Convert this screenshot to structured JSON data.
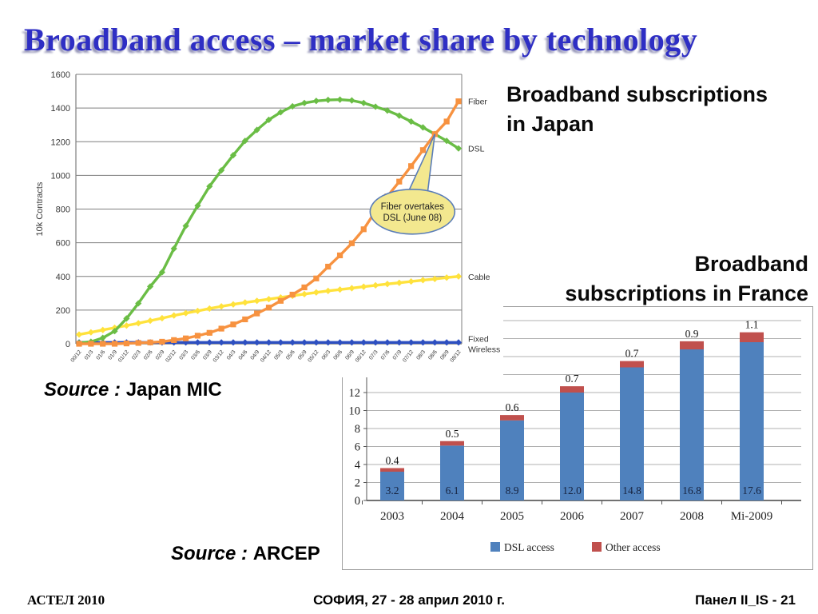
{
  "slide": {
    "title": "Broadband access – market share by technology",
    "japan_heading_line1": "Broadband subscriptions",
    "japan_heading_line2": "in Japan",
    "france_heading_line1": "Broadband",
    "france_heading_line2": "subscriptions in France",
    "source_japan_label": "Source :",
    "source_japan_value": "Japan MIC",
    "source_france_label": "Source :",
    "source_france_value": "ARCEP",
    "footer_left": "АСТЕЛ 2010",
    "footer_center": "СОФИЯ, 27 - 28 април 2010 г.",
    "footer_right": "Панел II_IS -  21"
  },
  "colors": {
    "title_blue": "#2e2ec4",
    "grid_gray": "#7f7f7f",
    "france_grid": "#b0b0b0",
    "callout_fill": "#f3e88f",
    "callout_stroke": "#5a7db8"
  },
  "chart_data": [
    {
      "type": "line",
      "title": "Broadband subscriptions in Japan",
      "xlabel": "",
      "ylabel": "10k Contracts",
      "ylim": [
        0,
        1600
      ],
      "ytick_step": 200,
      "grid": true,
      "legend_position": "right-edge-labels",
      "x": [
        "00/12",
        "01/3",
        "01/6",
        "01/9",
        "01/12",
        "02/3",
        "02/6",
        "02/9",
        "02/12",
        "03/3",
        "03/6",
        "03/9",
        "03/12",
        "04/3",
        "04/6",
        "04/9",
        "04/12",
        "05/3",
        "05/6",
        "05/9",
        "05/12",
        "06/3",
        "06/6",
        "06/9",
        "06/12",
        "07/3",
        "07/6",
        "07/9",
        "07/12",
        "08/3",
        "08/6",
        "08/9",
        "08/12"
      ],
      "series": [
        {
          "name": "Fixed Wireless",
          "color": "#2d4fc0",
          "marker": "diamond",
          "values": [
            8,
            8,
            8,
            8,
            8,
            8,
            8,
            8,
            8,
            8,
            8,
            8,
            8,
            8,
            8,
            8,
            8,
            8,
            8,
            8,
            8,
            8,
            8,
            8,
            8,
            8,
            8,
            8,
            8,
            8,
            8,
            8,
            8
          ]
        },
        {
          "name": "Cable",
          "color": "#ffe23c",
          "marker": "diamond",
          "values": [
            55,
            68,
            82,
            95,
            108,
            122,
            137,
            152,
            168,
            182,
            195,
            209,
            222,
            234,
            245,
            255,
            265,
            275,
            285,
            295,
            305,
            314,
            322,
            330,
            339,
            347,
            355,
            362,
            370,
            378,
            385,
            393,
            400
          ]
        },
        {
          "name": "DSL",
          "color": "#6abd45",
          "marker": "diamond",
          "values": [
            5,
            12,
            35,
            75,
            150,
            240,
            340,
            425,
            565,
            700,
            820,
            935,
            1030,
            1120,
            1205,
            1270,
            1330,
            1375,
            1410,
            1430,
            1442,
            1448,
            1450,
            1445,
            1430,
            1408,
            1385,
            1355,
            1320,
            1285,
            1245,
            1205,
            1160
          ]
        },
        {
          "name": "Fiber",
          "color": "#f79240",
          "marker": "square",
          "values": [
            0,
            0,
            0,
            0,
            2,
            5,
            8,
            12,
            22,
            32,
            48,
            65,
            90,
            115,
            145,
            180,
            215,
            255,
            292,
            335,
            388,
            458,
            525,
            597,
            680,
            788,
            875,
            963,
            1055,
            1150,
            1245,
            1320,
            1440
          ]
        }
      ],
      "right_labels": [
        {
          "text": "Fiber",
          "series": "Fiber"
        },
        {
          "text": "DSL",
          "series": "DSL"
        },
        {
          "text": "Cable",
          "series": "Cable"
        },
        {
          "text": "Fixed Wireless",
          "series": "Fixed Wireless",
          "two_line": [
            "Fixed",
            "Wireless"
          ]
        }
      ],
      "annotation": {
        "line1": "Fiber overtakes",
        "line2": "DSL (June 08)",
        "points_to_x": "08/6",
        "points_to_value": 1245
      }
    },
    {
      "type": "bar",
      "stacked": true,
      "title": "Broadband subscriptions in France",
      "xlabel": "",
      "ylabel": "",
      "ylim": [
        0,
        20
      ],
      "ytick_step": 2,
      "yticks_labeled": [
        0,
        2,
        4,
        6,
        8,
        10,
        12
      ],
      "grid": true,
      "legend_position": "bottom",
      "categories": [
        "2003",
        "2004",
        "2005",
        "2006",
        "2007",
        "2008",
        "Mi-2009"
      ],
      "series": [
        {
          "name": "DSL access",
          "color": "#4f81bd",
          "values": [
            3.2,
            6.1,
            8.9,
            12.0,
            14.8,
            16.8,
            17.6
          ],
          "labels": [
            "3.2",
            "6.1",
            "8.9",
            "12.0",
            "14.8",
            "16.8",
            "17.6"
          ]
        },
        {
          "name": "Other access",
          "color": "#c0504d",
          "values": [
            0.4,
            0.5,
            0.6,
            0.7,
            0.7,
            0.9,
            1.1
          ],
          "labels": [
            "0.4",
            "0.5",
            "0.6",
            "0.7",
            "0.7",
            "0.9",
            "1.1"
          ]
        }
      ]
    }
  ]
}
